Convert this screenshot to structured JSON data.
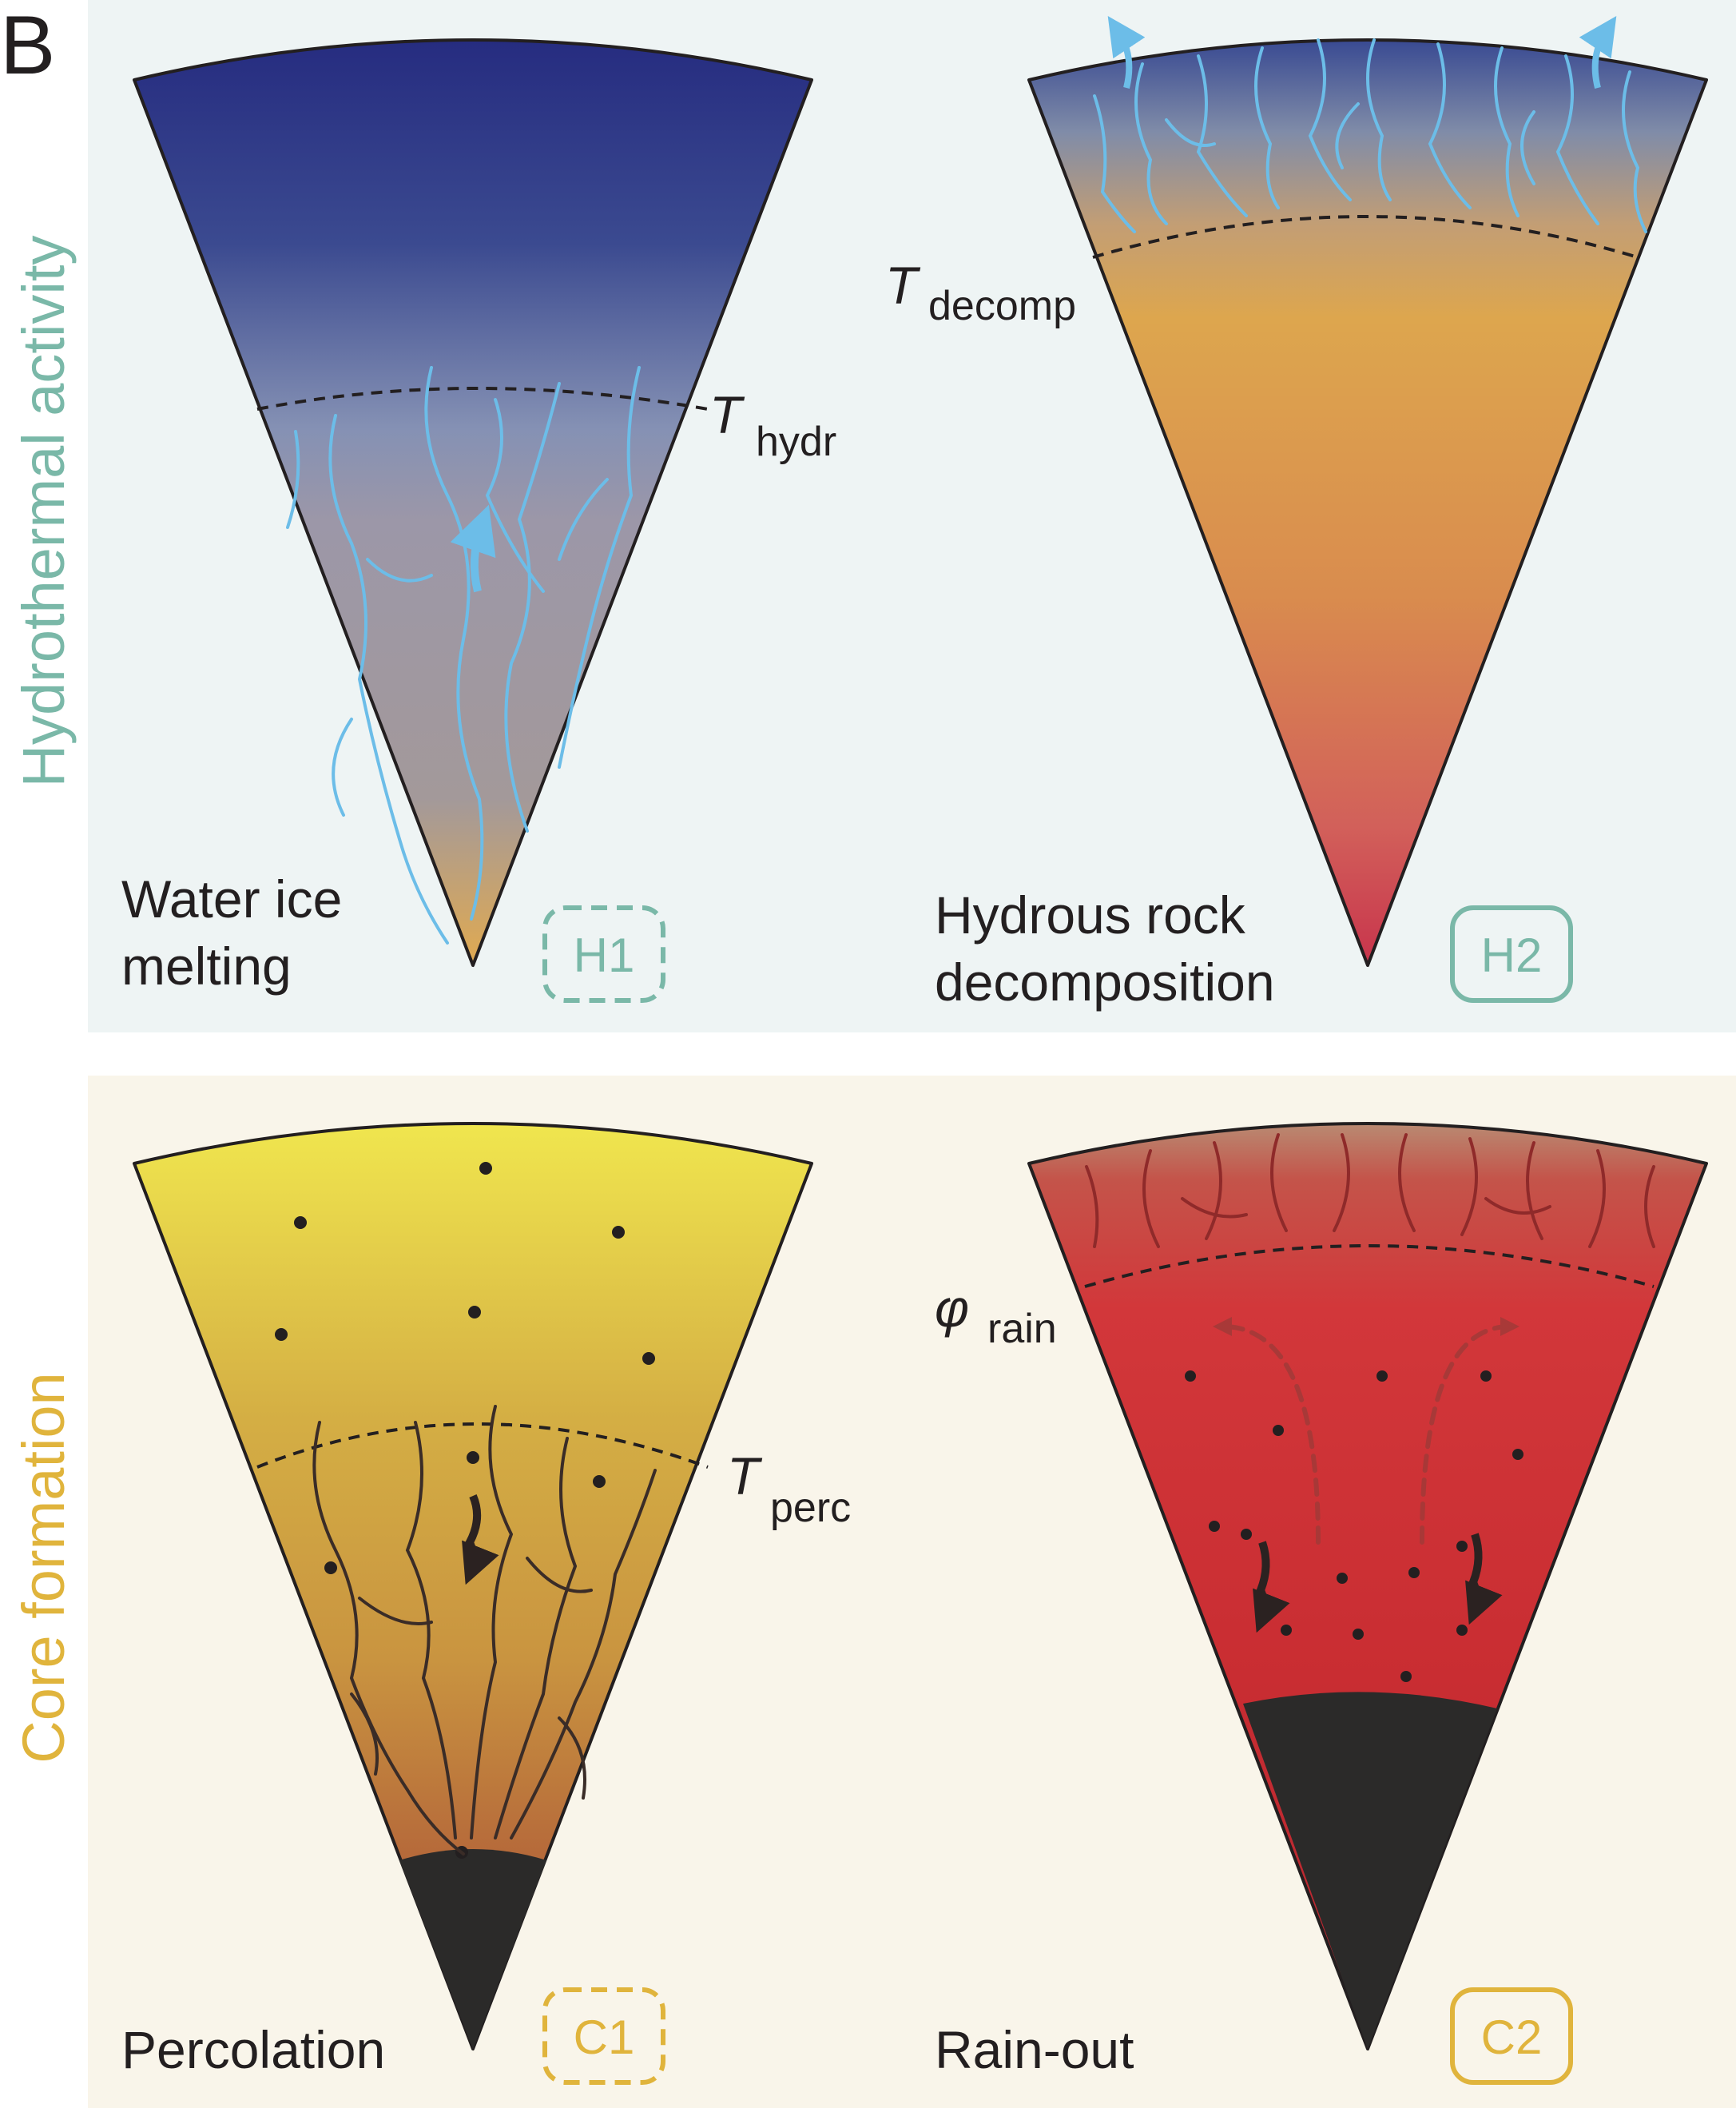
{
  "panel_letter": "B",
  "colors": {
    "hydrothermal": "#7ab8a8",
    "core": "#e0b43c",
    "hydro_bg": "#eef4f4",
    "core_bg": "#f9f5ea",
    "water": "#6cbde8",
    "outline": "#231f20"
  },
  "sections": {
    "hydrothermal": {
      "title": "Hydrothermal activity"
    },
    "core": {
      "title": "Core formation"
    }
  },
  "panels": {
    "h1": {
      "caption_line1": "Water ice",
      "caption_line2": "melting",
      "badge": "H1",
      "badge_style": "dashed",
      "threshold_symbol": "T",
      "threshold_sub": "hydr"
    },
    "h2": {
      "caption_line1": "Hydrous rock",
      "caption_line2": "decomposition",
      "badge": "H2",
      "badge_style": "solid",
      "threshold_symbol": "T",
      "threshold_sub": "decomp"
    },
    "c1": {
      "caption_line1": "Percolation",
      "badge": "C1",
      "badge_style": "dashed",
      "threshold_symbol": "T",
      "threshold_sub": "perc"
    },
    "c2": {
      "caption_line1": "Rain-out",
      "badge": "C2",
      "badge_style": "solid",
      "threshold_symbol": "φ",
      "threshold_sub": "rain"
    }
  }
}
